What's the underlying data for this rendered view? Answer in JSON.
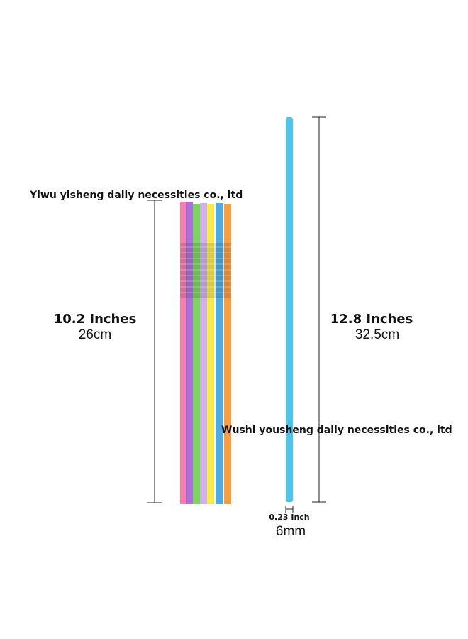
{
  "watermarks": [
    "Yiwu yisheng daily necessities co., ltd",
    "Wushi yousheng daily necessities co., ltd"
  ],
  "left_dimension": {
    "inches": "10.2 Inches",
    "cm": "26cm"
  },
  "right_dimension": {
    "inches": "12.8 Inches",
    "cm": "32.5cm"
  },
  "diameter": {
    "inches": "0.23 Inch",
    "mm": "6mm"
  }
}
